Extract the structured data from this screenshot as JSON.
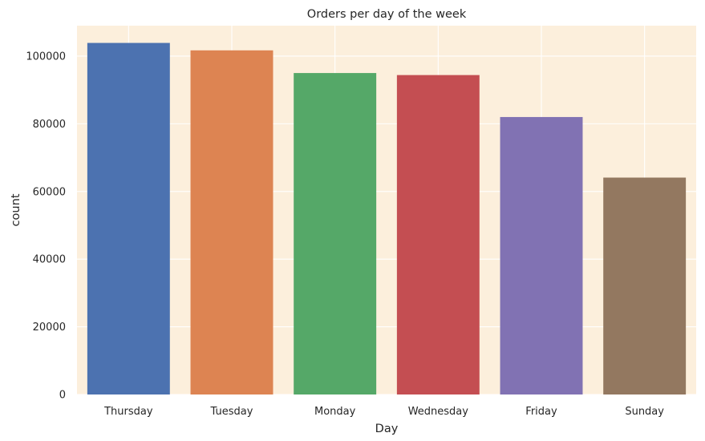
{
  "chart_data": {
    "type": "bar",
    "title": "Orders per day of the week",
    "xlabel": "Day",
    "ylabel": "count",
    "categories": [
      "Thursday",
      "Tuesday",
      "Monday",
      "Wednesday",
      "Friday",
      "Sunday"
    ],
    "values": [
      103900,
      101700,
      95000,
      94400,
      82000,
      64100
    ],
    "colors": [
      "#4c72b0",
      "#dd8452",
      "#55a868",
      "#c44e52",
      "#8172b3",
      "#937860"
    ],
    "ylim": [
      0,
      109000
    ],
    "yticks": [
      0,
      20000,
      40000,
      60000,
      80000,
      100000
    ],
    "ytick_labels": [
      "0",
      "20000",
      "40000",
      "60000",
      "80000",
      "100000"
    ],
    "grid": true,
    "background_color": "#fcefdc",
    "grid_color": "#ffffff"
  }
}
